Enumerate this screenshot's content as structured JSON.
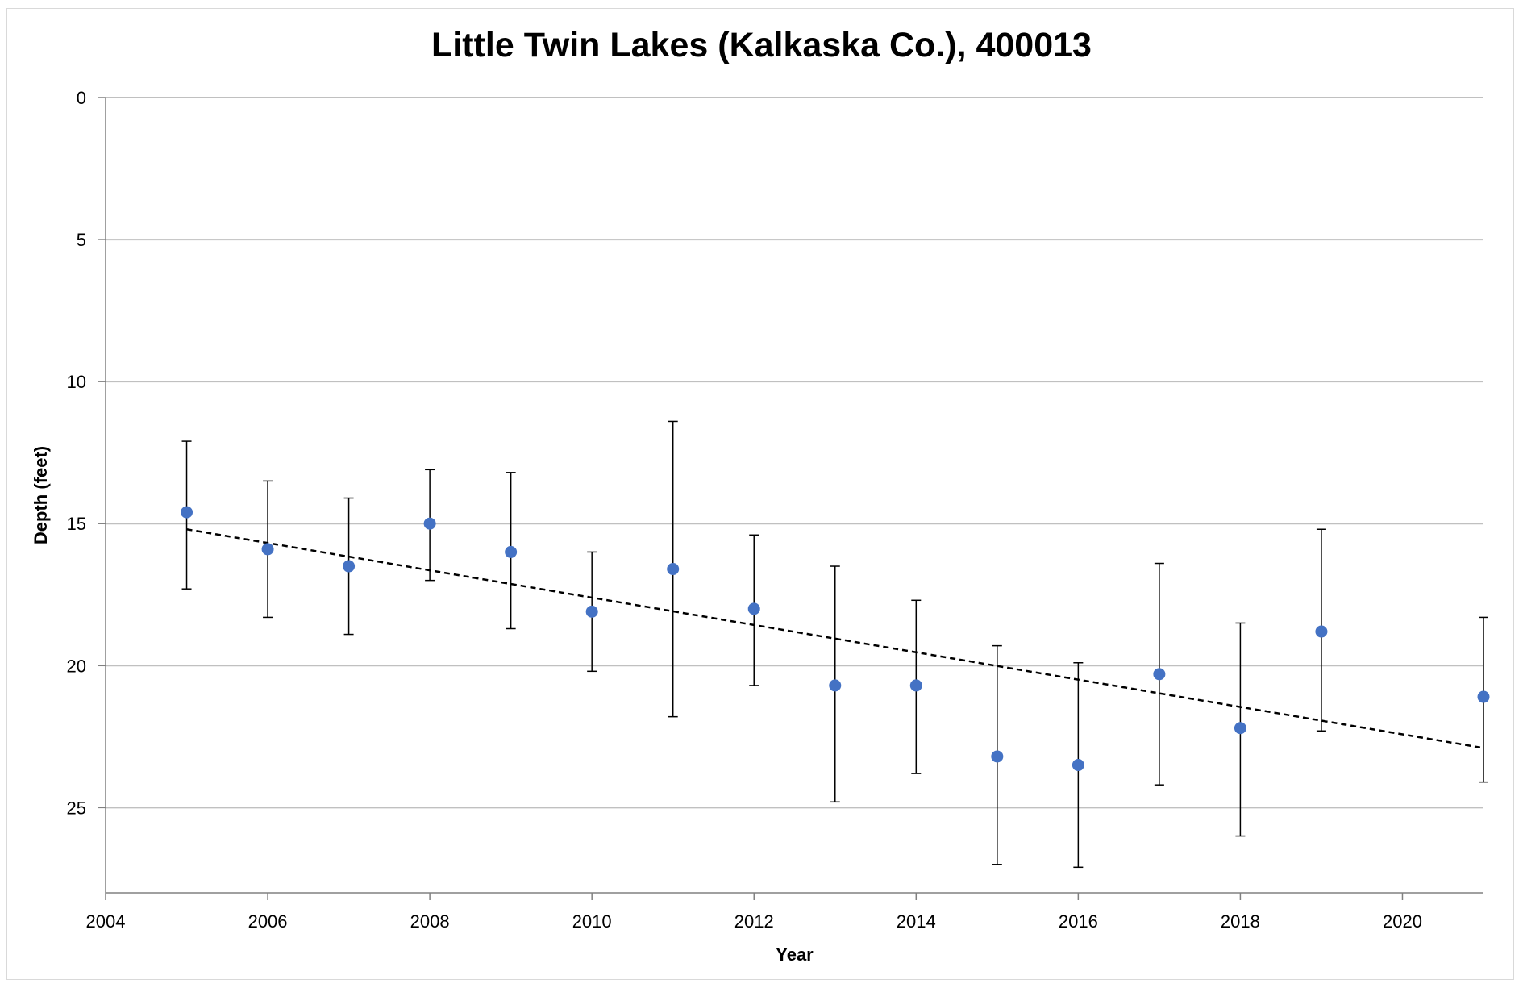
{
  "chart_data": {
    "type": "scatter",
    "title": "Little Twin Lakes (Kalkaska Co.), 400013",
    "xlabel": "Year",
    "ylabel": "Depth (feet)",
    "xlim": [
      2004,
      2021
    ],
    "ylim": [
      0,
      28
    ],
    "y_inverted": true,
    "x_ticks": [
      2004,
      2006,
      2008,
      2010,
      2012,
      2014,
      2016,
      2018,
      2020
    ],
    "y_ticks": [
      0,
      5,
      10,
      15,
      20,
      25
    ],
    "grid": "horizontal",
    "legend": "none",
    "point_color": "#4472C4",
    "series": [
      {
        "x": [
          2005,
          2006,
          2007,
          2008,
          2009,
          2010,
          2011,
          2012,
          2013,
          2014,
          2015,
          2016,
          2017,
          2018,
          2019,
          2021
        ],
        "y": [
          14.6,
          15.9,
          16.5,
          15.0,
          16.0,
          18.1,
          16.6,
          18.0,
          20.7,
          20.7,
          23.2,
          23.5,
          20.3,
          22.2,
          18.8,
          21.1
        ],
        "error_low": [
          12.1,
          13.5,
          14.1,
          13.1,
          13.2,
          16.0,
          11.4,
          15.4,
          16.5,
          17.7,
          19.3,
          19.9,
          16.4,
          18.5,
          15.2,
          18.3
        ],
        "error_high": [
          17.3,
          18.3,
          18.9,
          17.0,
          18.7,
          20.2,
          21.8,
          20.7,
          24.8,
          23.8,
          27.0,
          27.1,
          24.2,
          26.0,
          22.3,
          24.1
        ]
      }
    ],
    "trendline": {
      "style": "dashed",
      "color": "#000000",
      "x": [
        2005,
        2021
      ],
      "y": [
        15.2,
        22.9
      ]
    }
  }
}
